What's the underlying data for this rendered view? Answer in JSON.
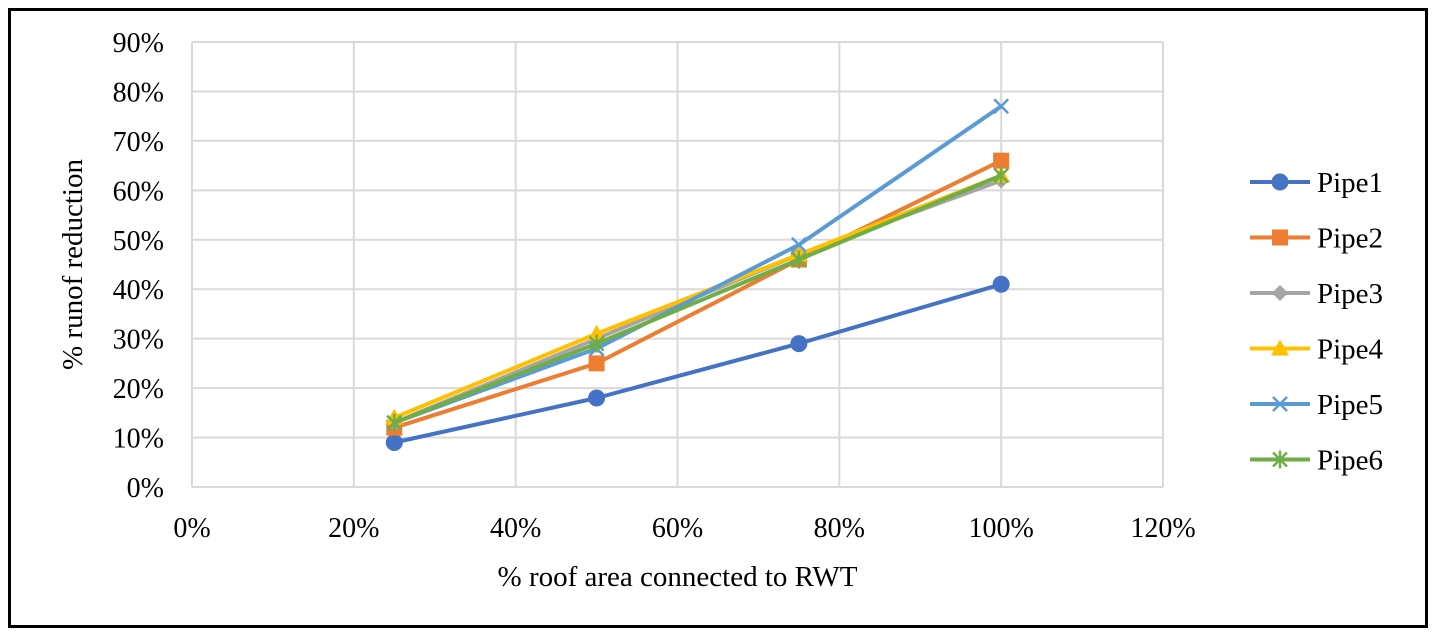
{
  "chart_data": {
    "type": "line",
    "title": "",
    "xlabel": "% roof area connected to RWT",
    "ylabel": "% runof reduction",
    "xlim": [
      0,
      120
    ],
    "ylim": [
      0,
      90
    ],
    "x_ticks": [
      "0%",
      "20%",
      "40%",
      "60%",
      "80%",
      "100%",
      "120%"
    ],
    "y_ticks": [
      "0%",
      "10%",
      "20%",
      "30%",
      "40%",
      "50%",
      "60%",
      "70%",
      "80%",
      "90%"
    ],
    "x": [
      25,
      50,
      75,
      100
    ],
    "grid": "on",
    "legend_position": "right",
    "series": [
      {
        "name": "Pipe1",
        "values": [
          9,
          18,
          29,
          41
        ],
        "color": "#4472C4",
        "marker": "circle"
      },
      {
        "name": "Pipe2",
        "values": [
          12,
          25,
          46,
          66
        ],
        "color": "#ED7D31",
        "marker": "square"
      },
      {
        "name": "Pipe3",
        "values": [
          13,
          30,
          47,
          62
        ],
        "color": "#A5A5A5",
        "marker": "diamond"
      },
      {
        "name": "Pipe4",
        "values": [
          14,
          31,
          47,
          63
        ],
        "color": "#FFC000",
        "marker": "triangle"
      },
      {
        "name": "Pipe5",
        "values": [
          13,
          28,
          49,
          77
        ],
        "color": "#5B9BD5",
        "marker": "x"
      },
      {
        "name": "Pipe6",
        "values": [
          13,
          29,
          46,
          63
        ],
        "color": "#70AD47",
        "marker": "star"
      }
    ]
  }
}
